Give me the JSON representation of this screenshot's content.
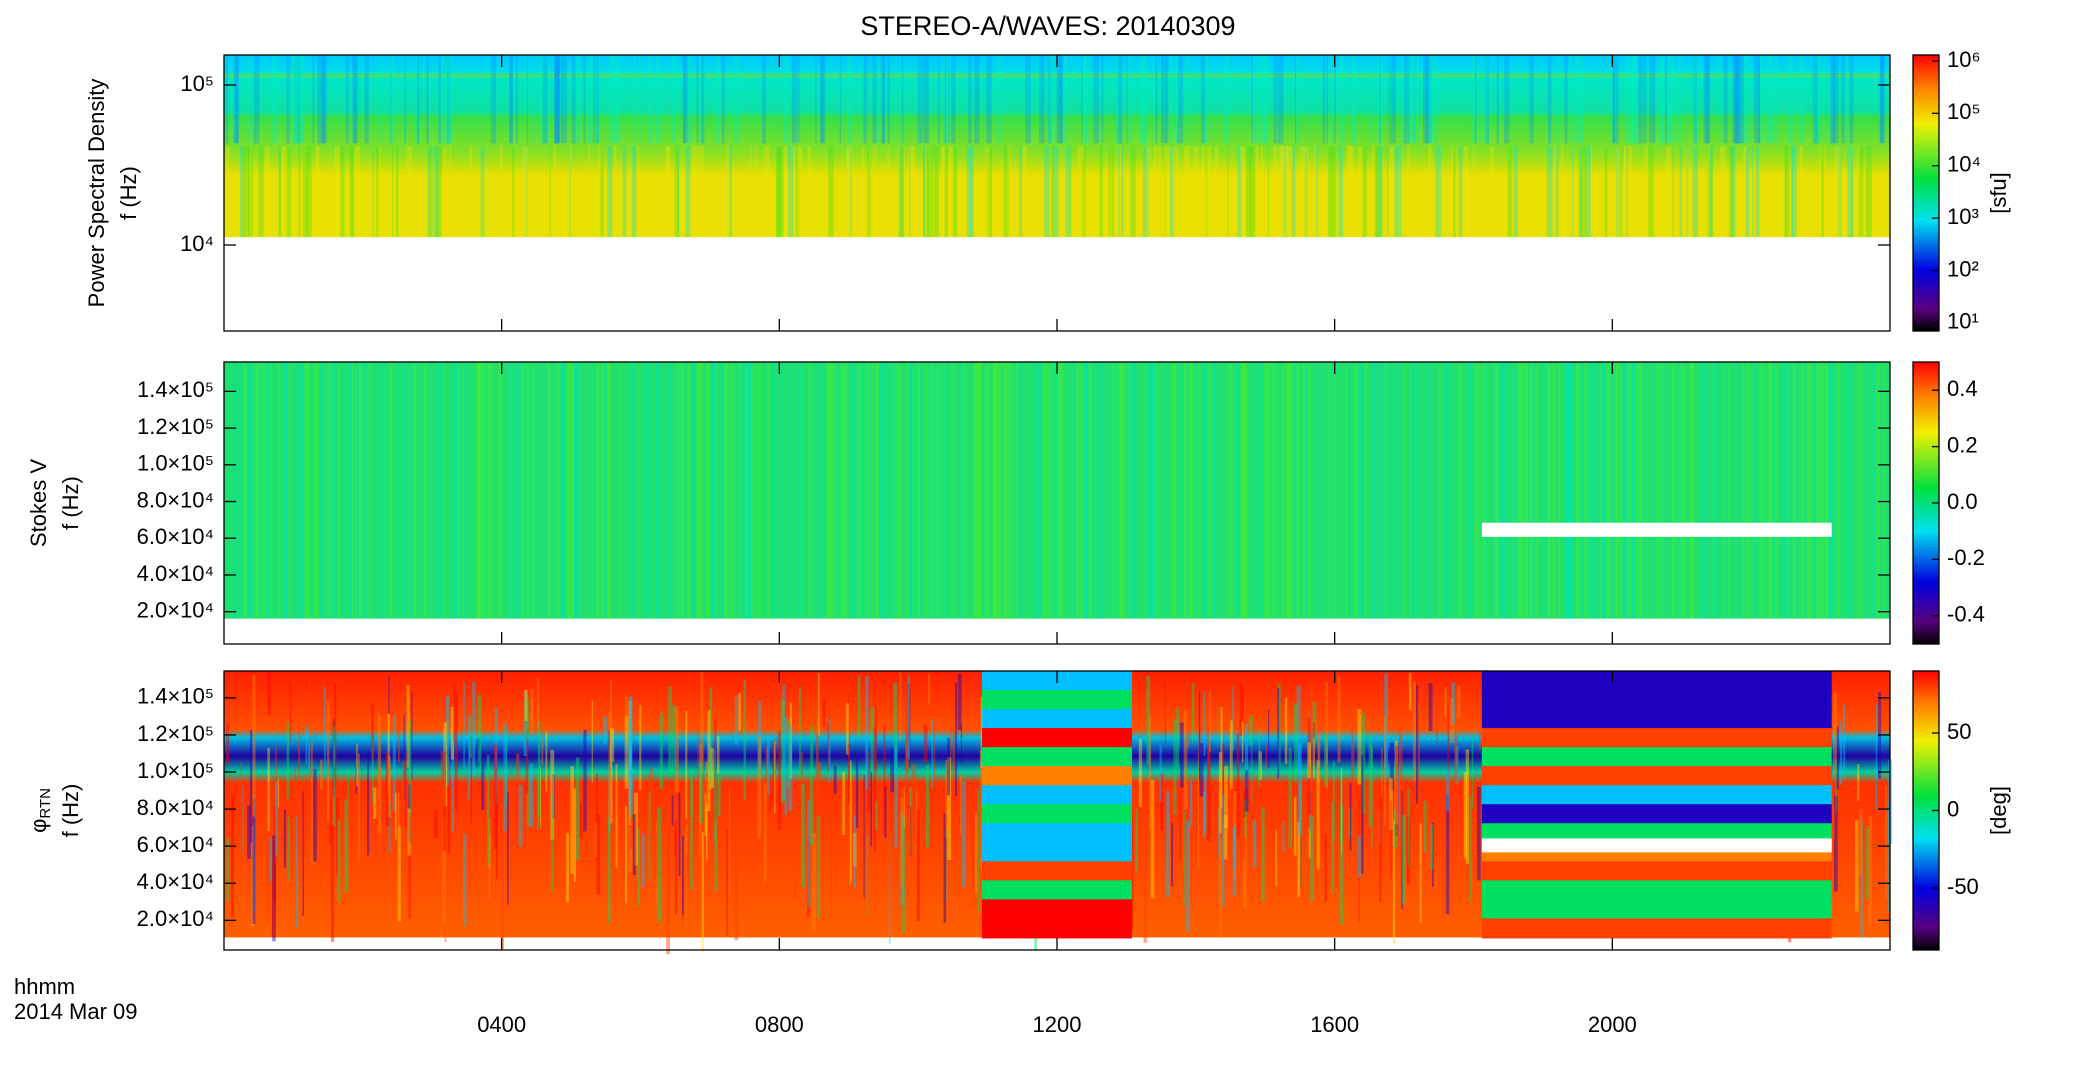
{
  "title": "STEREO-A/WAVES: 20140309",
  "chart_data": [
    {
      "type": "spectrogram",
      "ylabel": [
        "Power Spectral Density",
        "f (Hz)"
      ],
      "ylog": true,
      "xlim": [
        0,
        24
      ],
      "xticks": [
        4,
        8,
        12,
        16,
        20
      ],
      "ylim": [
        2900,
        154000
      ],
      "yticks": [
        {
          "value": 10000,
          "label": "10⁴"
        },
        {
          "value": 100000,
          "label": "10⁵"
        }
      ],
      "colorbar": {
        "label": "[sfu]",
        "log": true,
        "lim": [
          7,
          1300000
        ],
        "ticks": [
          {
            "value": 10,
            "label": "10¹"
          },
          {
            "value": 100,
            "label": "10²"
          },
          {
            "value": 1000,
            "label": "10³"
          },
          {
            "value": 10000,
            "label": "10⁴"
          },
          {
            "value": 100000,
            "label": "10⁵"
          },
          {
            "value": 1000000,
            "label": "10⁶"
          }
        ]
      }
    },
    {
      "type": "spectrogram",
      "ylabel": [
        "Stokes V",
        "f (Hz)"
      ],
      "ylog": false,
      "xlim": [
        0,
        24
      ],
      "xticks": [
        4,
        8,
        12,
        16,
        20
      ],
      "ylim": [
        2400,
        156000
      ],
      "yticks": [
        {
          "value": 20000,
          "label": "2.0×10⁴"
        },
        {
          "value": 40000,
          "label": "4.0×10⁴"
        },
        {
          "value": 60000,
          "label": "6.0×10⁴"
        },
        {
          "value": 80000,
          "label": "8.0×10⁴"
        },
        {
          "value": 100000,
          "label": "1.0×10⁵"
        },
        {
          "value": 120000,
          "label": "1.2×10⁵"
        },
        {
          "value": 140000,
          "label": "1.4×10⁵"
        }
      ],
      "colorbar": {
        "log": false,
        "lim": [
          -0.5,
          0.5
        ],
        "ticks": [
          -0.4,
          -0.2,
          {
            "value": 0,
            "label": "0.0"
          },
          0.2,
          0.4
        ]
      }
    },
    {
      "type": "spectrogram",
      "ylabel": [
        {
          "text": "φ",
          "sub": "RTN"
        },
        "f (Hz)"
      ],
      "ylog": false,
      "xlim": [
        0,
        24
      ],
      "xticks": [
        {
          "value": 4,
          "label": "0400"
        },
        {
          "value": 8,
          "label": "0800"
        },
        {
          "value": 12,
          "label": "1200"
        },
        {
          "value": 16,
          "label": "1600"
        },
        {
          "value": 20,
          "label": "2000"
        }
      ],
      "xlabel": "hhmm",
      "date_label": "2014 Mar 09",
      "ylim": [
        4000,
        154500
      ],
      "yticks": [
        {
          "value": 20000,
          "label": "2.0×10⁴"
        },
        {
          "value": 40000,
          "label": "4.0×10⁴"
        },
        {
          "value": 60000,
          "label": "6.0×10⁴"
        },
        {
          "value": 80000,
          "label": "8.0×10⁴"
        },
        {
          "value": 100000,
          "label": "1.0×10⁵"
        },
        {
          "value": 120000,
          "label": "1.2×10⁵"
        },
        {
          "value": 140000,
          "label": "1.4×10⁵"
        }
      ],
      "colorbar": {
        "label": "[deg]",
        "log": false,
        "lim": [
          -90,
          90
        ],
        "ticks": [
          -50,
          0,
          50
        ]
      }
    }
  ]
}
